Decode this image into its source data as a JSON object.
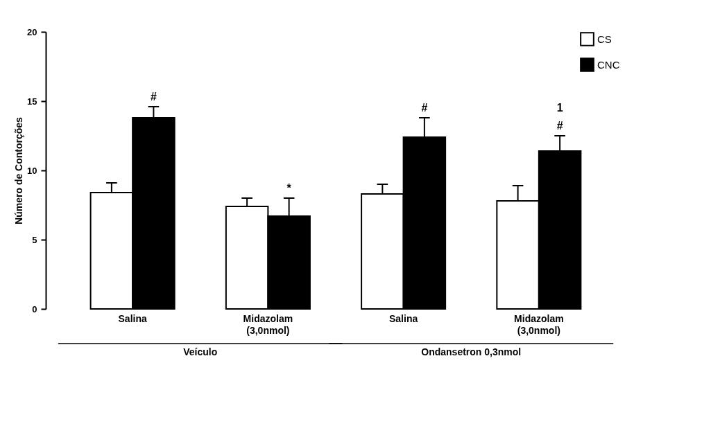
{
  "chart_data": {
    "type": "bar",
    "ylabel": "Número de Contorções",
    "categories": [
      "Salina",
      "Midazolam (3,0nmol)",
      "Salina",
      "Midazolam (3,0nmol)"
    ],
    "series": [
      {
        "name": "CS",
        "color": "#ffffff",
        "values": [
          8.4,
          7.4,
          8.3,
          7.8
        ],
        "errors": [
          [
            8.4,
            9.1
          ],
          [
            7.4,
            8.0
          ],
          [
            8.3,
            9.0
          ],
          [
            7.8,
            8.9
          ]
        ]
      },
      {
        "name": "CNC",
        "color": "#000000",
        "values": [
          13.8,
          6.7,
          12.4,
          11.4
        ],
        "errors": [
          [
            13.8,
            14.6
          ],
          [
            6.7,
            8.0
          ],
          [
            12.4,
            13.8
          ],
          [
            11.4,
            12.5
          ]
        ]
      }
    ],
    "ylim": [
      0,
      20
    ],
    "yticks": [
      0,
      5,
      10,
      15,
      20
    ],
    "grid": false,
    "legend": "top right",
    "annotations": [
      "#",
      "*",
      "#",
      "#",
      "1",
      "Veículo",
      "Ondansetron 0,3nmol"
    ]
  }
}
